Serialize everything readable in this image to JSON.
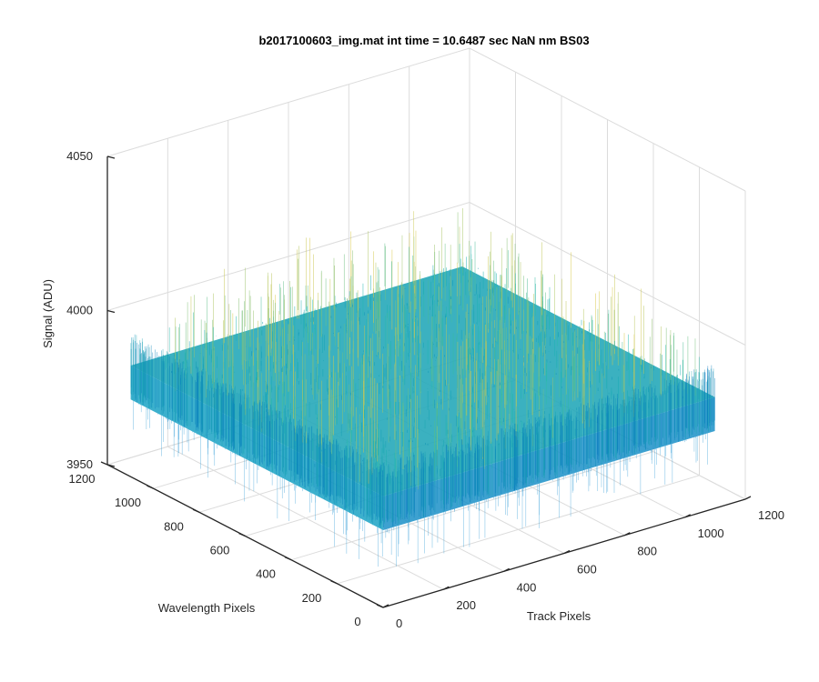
{
  "chart_data": {
    "type": "surface",
    "title": "b2017100603_img.mat int time = 10.6487 sec  NaN nm BS03",
    "xlabel": "Track Pixels",
    "ylabel": "Wavelength Pixels",
    "zlabel": "Signal (ADU)",
    "xlim": [
      0,
      1200
    ],
    "ylim": [
      0,
      1200
    ],
    "zlim": [
      3950,
      4050
    ],
    "xticks": [
      0,
      200,
      400,
      600,
      800,
      1000,
      1200
    ],
    "yticks": [
      0,
      200,
      400,
      600,
      800,
      1000,
      1200
    ],
    "zticks": [
      3950,
      4000,
      4050
    ],
    "grid": true,
    "colormap": "parula",
    "data_extent": {
      "x": [
        1,
        1100
      ],
      "y": [
        1,
        1100
      ]
    },
    "signal": {
      "mean": 3986,
      "typical_range": [
        3975,
        3997
      ],
      "min_spike": 3960,
      "max_spike": 4012
    },
    "colors": {
      "low": "#0072bd",
      "mid": "#21b9b0",
      "high": "#d9c94a"
    }
  }
}
